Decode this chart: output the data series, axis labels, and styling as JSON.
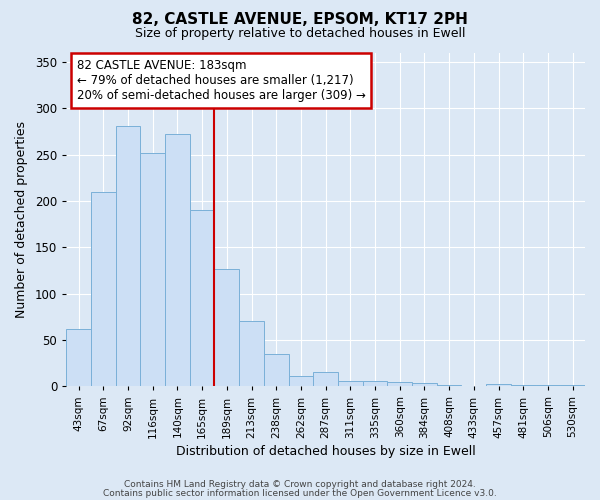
{
  "title": "82, CASTLE AVENUE, EPSOM, KT17 2PH",
  "subtitle": "Size of property relative to detached houses in Ewell",
  "xlabel": "Distribution of detached houses by size in Ewell",
  "ylabel": "Number of detached properties",
  "bar_color": "#ccdff5",
  "bar_edge_color": "#7ab0d8",
  "background_color": "#dce8f5",
  "grid_color": "#ffffff",
  "annotation_line_color": "#cc0000",
  "annotation_box_color": "#ffffff",
  "annotation_box_edge": "#cc0000",
  "annotation_text": "82 CASTLE AVENUE: 183sqm\n← 79% of detached houses are smaller (1,217)\n20% of semi-detached houses are larger (309) →",
  "categories": [
    "43sqm",
    "67sqm",
    "92sqm",
    "116sqm",
    "140sqm",
    "165sqm",
    "189sqm",
    "213sqm",
    "238sqm",
    "262sqm",
    "287sqm",
    "311sqm",
    "335sqm",
    "360sqm",
    "384sqm",
    "408sqm",
    "433sqm",
    "457sqm",
    "481sqm",
    "506sqm",
    "530sqm"
  ],
  "values": [
    62,
    210,
    281,
    252,
    272,
    190,
    127,
    70,
    35,
    11,
    15,
    6,
    6,
    5,
    4,
    2,
    0,
    3,
    2,
    2,
    2
  ],
  "ylim": [
    0,
    360
  ],
  "yticks": [
    0,
    50,
    100,
    150,
    200,
    250,
    300,
    350
  ],
  "marker_bar_index": 6,
  "footnote1": "Contains HM Land Registry data © Crown copyright and database right 2024.",
  "footnote2": "Contains public sector information licensed under the Open Government Licence v3.0."
}
